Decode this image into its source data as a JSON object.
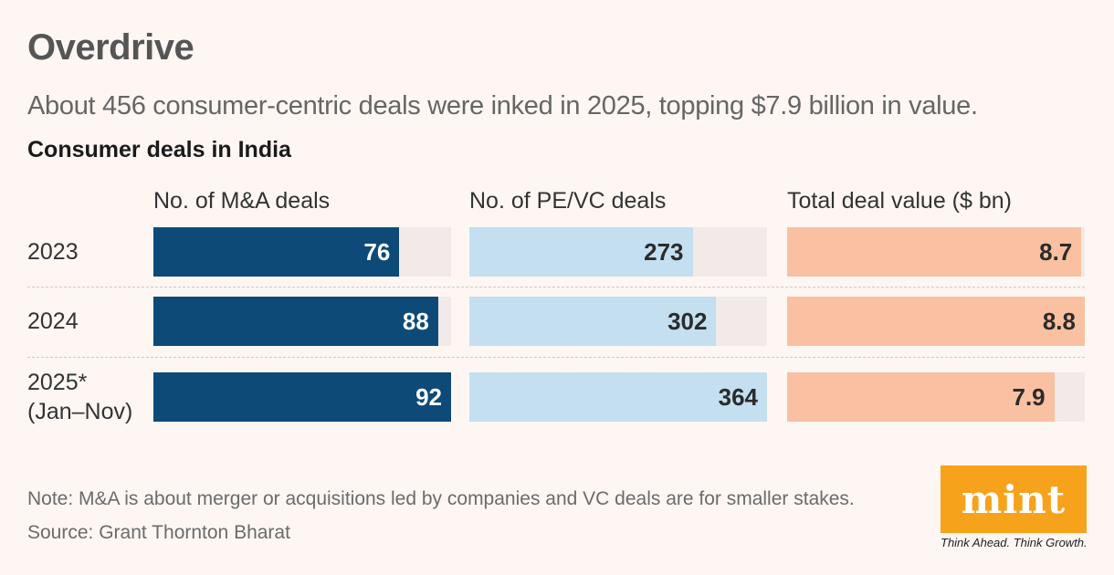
{
  "header": {
    "title": "Overdrive",
    "subtitle": "About 456 consumer-centric deals were inked in 2025, topping $7.9 billion in value."
  },
  "footer": {
    "note": "Note: M&A is about merger or acquisitions led by companies and VC deals are for smaller stakes.",
    "source": "Source: Grant Thornton Bharat"
  },
  "brand": {
    "logo_text": "mint",
    "tagline": "Think Ahead. Think Growth.",
    "logo_color": "#f7a21b"
  },
  "chart_data": {
    "type": "bar",
    "title": "Consumer deals in India",
    "categories": [
      "2023",
      "2024",
      "2025*\n(Jan–Nov)"
    ],
    "category_lines": [
      [
        "2023"
      ],
      [
        "2024"
      ],
      [
        "2025*",
        "(Jan–Nov)"
      ]
    ],
    "series": [
      {
        "name": "No. of M&A deals",
        "values": [
          76,
          88,
          92
        ],
        "max": 92,
        "color": "#0d4a78",
        "label_color": "#ffffff"
      },
      {
        "name": "No. of PE/VC deals",
        "values": [
          273,
          302,
          364
        ],
        "max": 364,
        "color": "#c3dff0",
        "label_color": "#2b2b2b"
      },
      {
        "name": "Total deal value ($ bn)",
        "values": [
          8.7,
          8.8,
          7.9
        ],
        "max": 8.8,
        "color": "#f9c0a1",
        "label_color": "#2b2b2b"
      }
    ],
    "value_labels": [
      [
        "76",
        "88",
        "92"
      ],
      [
        "273",
        "302",
        "364"
      ],
      [
        "8.7",
        "8.8",
        "7.9"
      ]
    ],
    "track_color": "#f1eae8"
  }
}
